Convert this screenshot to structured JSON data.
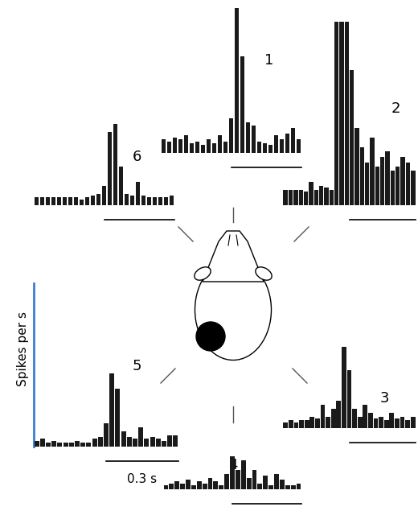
{
  "chart_data": [
    {
      "type": "bar",
      "title": "1",
      "color": "#1a1a1a",
      "ylim": [
        0,
        100
      ],
      "tick_labels": false,
      "values": [
        7,
        6,
        8,
        7,
        9,
        5,
        6,
        4,
        7,
        5,
        9,
        6,
        18,
        75,
        50,
        16,
        14,
        6,
        5,
        4,
        9,
        7,
        10,
        13,
        7
      ]
    },
    {
      "type": "bar",
      "title": "2",
      "color": "#1a1a1a",
      "ylim": [
        0,
        100
      ],
      "tick_labels": false,
      "values": [
        8,
        8,
        8,
        8,
        7,
        12,
        8,
        10,
        9,
        8,
        95,
        95,
        95,
        70,
        40,
        30,
        22,
        35,
        20,
        25,
        28,
        18,
        20,
        25,
        22,
        18
      ]
    },
    {
      "type": "bar",
      "title": "3",
      "color": "#1a1a1a",
      "ylim": [
        0,
        100
      ],
      "tick_labels": false,
      "values": [
        3,
        4,
        3,
        4,
        4,
        6,
        5,
        12,
        6,
        10,
        14,
        42,
        30,
        10,
        6,
        12,
        8,
        5,
        6,
        4,
        8,
        5,
        6,
        4,
        6
      ]
    },
    {
      "type": "bar",
      "title": "4",
      "color": "#1a1a1a",
      "ylim": [
        0,
        100
      ],
      "tick_labels": false,
      "values": [
        2,
        3,
        4,
        3,
        5,
        2,
        4,
        3,
        6,
        4,
        2,
        8,
        17,
        10,
        15,
        6,
        10,
        3,
        7,
        2,
        8,
        5,
        2,
        2,
        3
      ]
    },
    {
      "type": "bar",
      "title": "5",
      "color": "#1a1a1a",
      "ylim": [
        0,
        100
      ],
      "tick_labels": false,
      "ylabel": "Spikes per s",
      "xlabel": "0.3 s",
      "values": [
        3,
        4,
        2,
        3,
        2,
        2,
        2,
        3,
        2,
        2,
        4,
        5,
        12,
        38,
        30,
        8,
        5,
        4,
        10,
        4,
        5,
        4,
        3,
        6,
        6
      ]
    },
    {
      "type": "bar",
      "title": "6",
      "color": "#1a1a1a",
      "ylim": [
        0,
        100
      ],
      "tick_labels": false,
      "values": [
        4,
        4,
        4,
        4,
        4,
        4,
        4,
        4,
        3,
        4,
        5,
        6,
        10,
        38,
        42,
        20,
        6,
        5,
        12,
        5,
        4,
        4,
        4,
        4,
        5
      ]
    }
  ]
}
